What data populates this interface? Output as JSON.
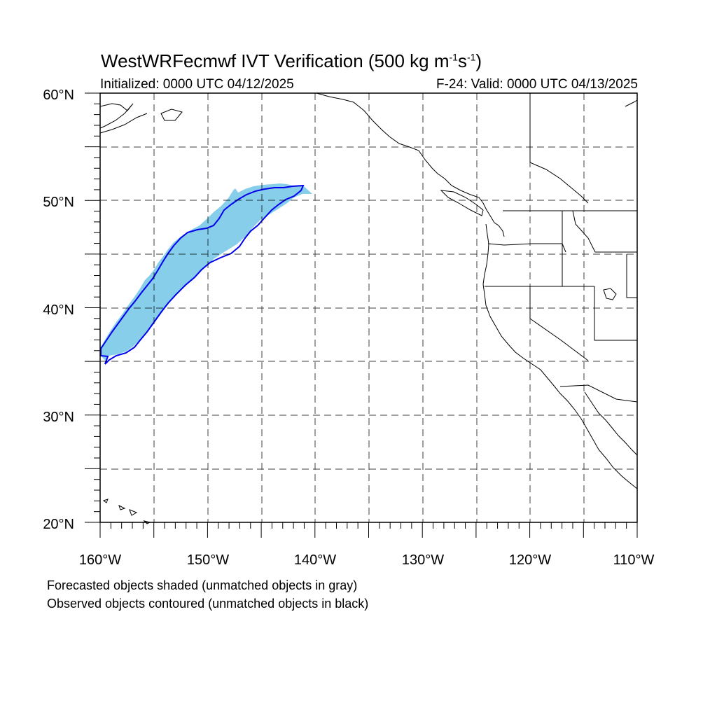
{
  "header": {
    "title_main": "WestWRFecmwf IVT Verification (500 kg m",
    "title_exp1": "-1",
    "title_mid": "s",
    "title_exp2": "-1",
    "title_end": ")",
    "initialized": "Initialized: 0000 UTC 04/12/2025",
    "valid": "F-24: Valid: 0000 UTC 04/13/2025"
  },
  "axes": {
    "lat_labels": [
      "60°N",
      "50°N",
      "40°N",
      "30°N",
      "20°N"
    ],
    "lon_labels": [
      "160°W",
      "150°W",
      "140°W",
      "130°W",
      "120°W",
      "110°W"
    ],
    "lat_range": [
      20,
      60
    ],
    "lon_range": [
      -160,
      -110
    ]
  },
  "legend": {
    "forecast_note": "Forecasted objects shaded (unmatched objects in gray)",
    "observed_note": "Observed objects contoured (unmatched objects in black)"
  },
  "colors": {
    "forecast_fill": "#87ceeb",
    "observed_contour": "#0000ee",
    "coastline": "#000000",
    "grid": "#000000"
  }
}
